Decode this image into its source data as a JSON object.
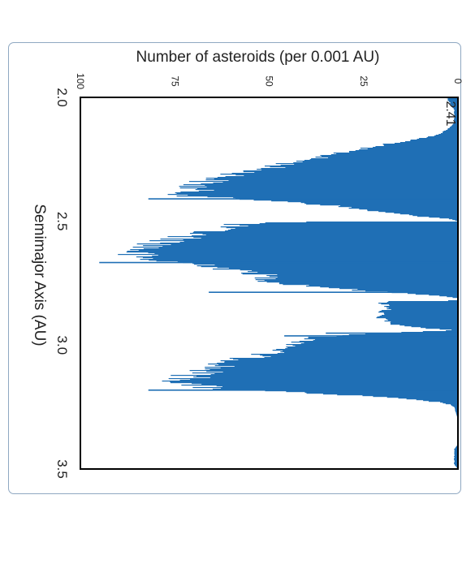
{
  "chart_data": {
    "type": "bar",
    "orientation": "rotated-90-clockwise",
    "title": "",
    "annotation": "2.41",
    "xlabel": "Semimajor Axis (AU)",
    "ylabel": "Number of asteroids (per 0.001 AU)",
    "xlim": [
      2.0,
      3.5
    ],
    "ylim": [
      0,
      100
    ],
    "x_ticks": [
      "2.0",
      "2.5",
      "3.0",
      "3.5"
    ],
    "y_ticks": [
      "0",
      "25",
      "50",
      "75",
      "100"
    ],
    "bin_width": 0.001,
    "color": "#1f6fb5",
    "grid": false,
    "legend": "none",
    "profile": {
      "x": [
        2.0,
        2.05,
        2.1,
        2.12,
        2.15,
        2.18,
        2.2,
        2.25,
        2.3,
        2.33,
        2.35,
        2.38,
        2.39,
        2.4,
        2.41,
        2.42,
        2.44,
        2.46,
        2.48,
        2.49,
        2.5,
        2.503,
        2.506,
        2.51,
        2.52,
        2.55,
        2.58,
        2.6,
        2.62,
        2.64,
        2.65,
        2.66,
        2.67,
        2.68,
        2.7,
        2.705,
        2.72,
        2.74,
        2.75,
        2.76,
        2.78,
        2.79,
        2.8,
        2.81,
        2.82,
        2.823,
        2.826,
        2.83,
        2.85,
        2.87,
        2.89,
        2.9,
        2.91,
        2.92,
        2.93,
        2.94,
        2.95,
        2.955,
        2.96,
        2.965,
        2.97,
        2.98,
        3.0,
        3.02,
        3.05,
        3.08,
        3.1,
        3.12,
        3.14,
        3.15,
        3.16,
        3.17,
        3.18,
        3.19,
        3.2,
        3.21,
        3.22,
        3.23,
        3.24,
        3.25,
        3.3,
        3.35,
        3.4,
        3.42,
        3.45,
        3.48,
        3.5
      ],
      "y": [
        3,
        1,
        1,
        2,
        5,
        15,
        24,
        40,
        56,
        65,
        70,
        72,
        72,
        71,
        60,
        45,
        32,
        22,
        10,
        2,
        0,
        45,
        52,
        58,
        62,
        70,
        77,
        82,
        86,
        88,
        84,
        80,
        72,
        65,
        60,
        55,
        52,
        50,
        48,
        40,
        25,
        15,
        5,
        0,
        0,
        20,
        20,
        20,
        18,
        21,
        22,
        18,
        20,
        15,
        10,
        0,
        20,
        25,
        30,
        36,
        38,
        41,
        43,
        48,
        56,
        63,
        67,
        71,
        73,
        74,
        72,
        68,
        60,
        45,
        32,
        20,
        12,
        5,
        2,
        1,
        0,
        0,
        0,
        1,
        1,
        1,
        0
      ]
    },
    "peaks": {
      "x": [
        2.409,
        2.666,
        2.786,
        2.951,
        2.962,
        3.181
      ],
      "y": [
        82,
        95,
        66,
        35,
        46,
        82
      ]
    }
  }
}
